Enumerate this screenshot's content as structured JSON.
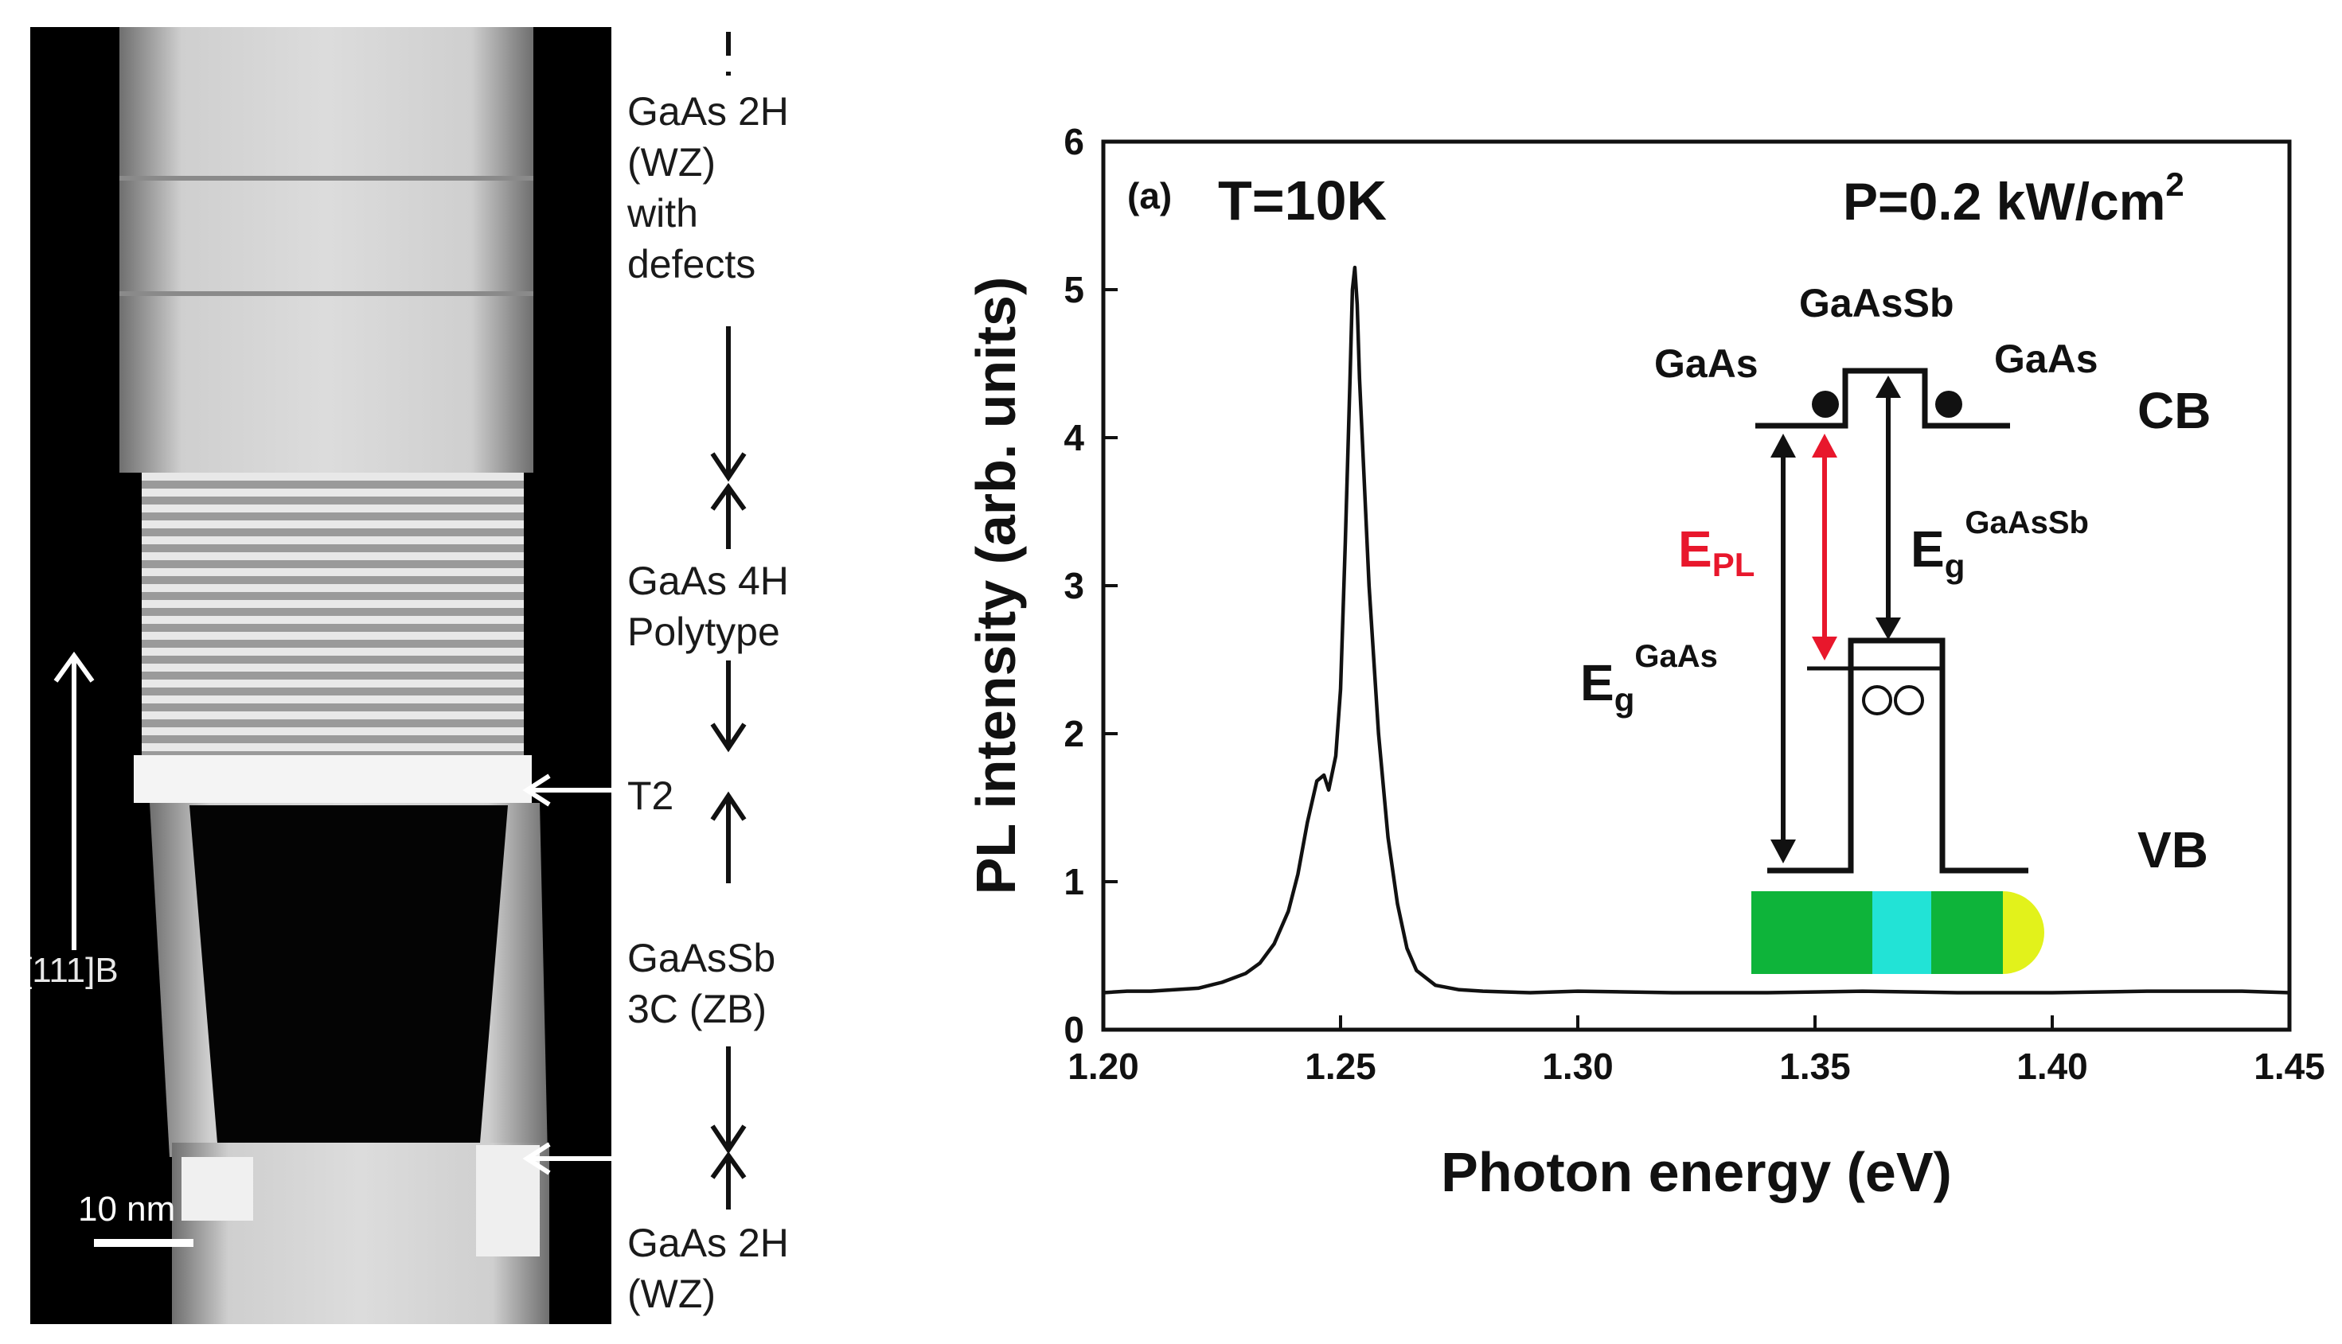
{
  "tem": {
    "scale_bar_label": "10 nm",
    "growth_direction_label": "[111]B",
    "segments": [
      {
        "label": "GaAs 2H\n(WZ)\nwith\ndefects"
      },
      {
        "label": "GaAs 4H\nPolytype"
      },
      {
        "label": "T2"
      },
      {
        "label": "GaAsSb\n3C (ZB)"
      },
      {
        "label": "GaAs 2H\n(WZ)"
      }
    ]
  },
  "chart_data": {
    "type": "line",
    "panel_label": "(a)",
    "annotations": [
      "T=10K",
      "P=0.2 kW/cm"
    ],
    "annotation_superscript": "2",
    "xlabel": "Photon energy (eV)",
    "ylabel": "PL intensity (arb. units)",
    "xlim": [
      1.2,
      1.45
    ],
    "ylim": [
      0,
      6
    ],
    "xticks": [
      "1.20",
      "1.25",
      "1.30",
      "1.35",
      "1.40",
      "1.45"
    ],
    "yticks": [
      "0",
      "1",
      "2",
      "3",
      "4",
      "5",
      "6"
    ],
    "series": [
      {
        "x": [
          1.2,
          1.205,
          1.21,
          1.215,
          1.22,
          1.225,
          1.23,
          1.233,
          1.236,
          1.239,
          1.241,
          1.243,
          1.245,
          1.2465,
          1.2475,
          1.249,
          1.25,
          1.251,
          1.252,
          1.2525,
          1.253,
          1.2535,
          1.254,
          1.255,
          1.256,
          1.258,
          1.26,
          1.262,
          1.264,
          1.266,
          1.27,
          1.275,
          1.28,
          1.29,
          1.3,
          1.32,
          1.34,
          1.36,
          1.38,
          1.4,
          1.42,
          1.44,
          1.45
        ],
        "y": [
          0.25,
          0.26,
          0.26,
          0.27,
          0.28,
          0.32,
          0.38,
          0.45,
          0.58,
          0.8,
          1.05,
          1.4,
          1.68,
          1.72,
          1.62,
          1.85,
          2.3,
          3.3,
          4.4,
          5.0,
          5.15,
          4.9,
          4.4,
          3.7,
          3.0,
          2.0,
          1.3,
          0.85,
          0.55,
          0.4,
          0.3,
          0.27,
          0.26,
          0.25,
          0.26,
          0.25,
          0.25,
          0.26,
          0.25,
          0.25,
          0.26,
          0.26,
          0.25
        ]
      }
    ],
    "inset": {
      "labels": {
        "gaas_left": "GaAs",
        "gaassb": "GaAsSb",
        "gaas_right": "GaAs",
        "cb": "CB",
        "vb": "VB",
        "epl_main": "E",
        "epl_sub": "PL",
        "eg_gaassb_main": "E",
        "eg_gaassb_sub": "g",
        "eg_gaassb_sup": "GaAsSb",
        "eg_gaas_main": "E",
        "eg_gaas_sub": "g",
        "eg_gaas_sup": "GaAs"
      },
      "colors": {
        "gaas_segment": "#0eb43a",
        "gaassb_segment": "#22e3d6",
        "catalyst_droplet": "#e2f21b",
        "epl_arrow": "#e8172c"
      }
    },
    "grid": false,
    "legend": "none"
  }
}
